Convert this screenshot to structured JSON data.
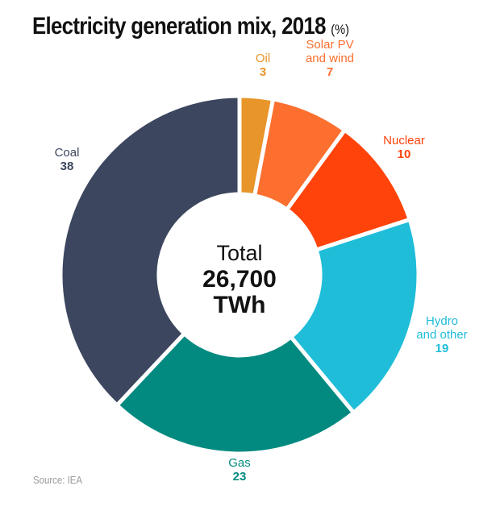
{
  "chart_data": {
    "type": "pie",
    "subtype": "donut",
    "title": "Electricity generation mix, 2018",
    "unit_label": "(%)",
    "center_text": {
      "line1": "Total",
      "line2": "26,700",
      "line3": "TWh"
    },
    "start": "top",
    "direction": "clockwise",
    "slices": [
      {
        "name": "Oil",
        "label_lines": [
          "Oil"
        ],
        "value": 3,
        "color": "#E8952A"
      },
      {
        "name": "Solar PV and wind",
        "label_lines": [
          "Solar PV",
          "and wind"
        ],
        "value": 7,
        "color": "#FC6F2E"
      },
      {
        "name": "Nuclear",
        "label_lines": [
          "Nuclear"
        ],
        "value": 10,
        "color": "#FF430A"
      },
      {
        "name": "Hydro and other",
        "label_lines": [
          "Hydro",
          "and other"
        ],
        "value": 19,
        "color": "#1FBDD8"
      },
      {
        "name": "Gas",
        "label_lines": [
          "Gas"
        ],
        "value": 23,
        "color": "#038A80"
      },
      {
        "name": "Coal",
        "label_lines": [
          "Coal"
        ],
        "value": 38,
        "color": "#3C465E"
      }
    ],
    "source": "Source: IEA"
  }
}
